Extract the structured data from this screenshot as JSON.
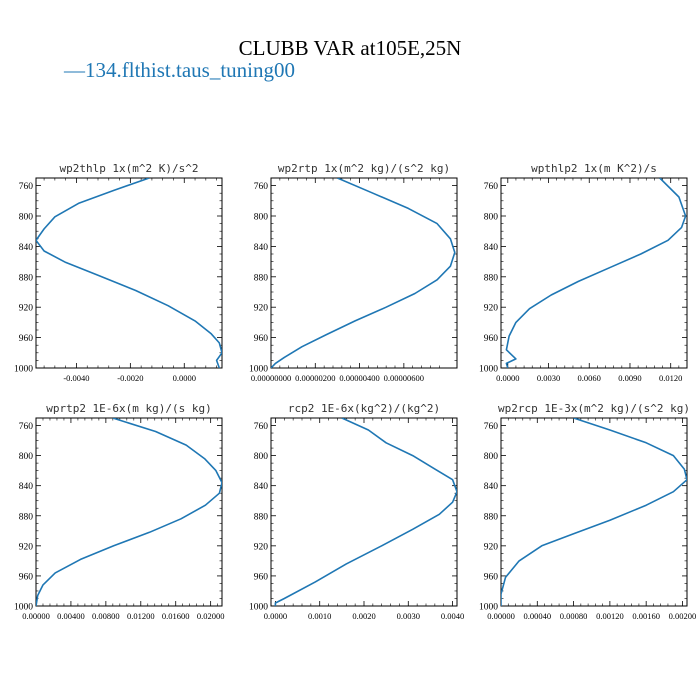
{
  "title": "CLUBB VAR at105E,25N",
  "legend": {
    "marker": "—",
    "label": "134.flthist.taus_tuning00",
    "color": "#1f77b4"
  },
  "chart_data": [
    {
      "type": "line",
      "title": "wp2thlp  1x(m^2 K)/s^2",
      "xlim": [
        -0.0055,
        0.0014
      ],
      "ylim": [
        1000,
        750
      ],
      "yticks": [
        760,
        800,
        840,
        880,
        920,
        960,
        1000
      ],
      "xticks": [
        -0.004,
        -0.002,
        0.0
      ],
      "xtick_labels": [
        "-0.0040",
        "-0.0020",
        "0.0000"
      ],
      "x": [
        -0.0013,
        -0.0026,
        -0.0039,
        -0.0048,
        -0.0052,
        -0.0055,
        -0.0052,
        -0.0044,
        -0.0032,
        -0.0018,
        -0.0006,
        0.0004,
        0.001,
        0.0013,
        0.0014,
        0.0012,
        0.0013
      ],
      "y": [
        750,
        766,
        783,
        801,
        817,
        832,
        846,
        861,
        878,
        898,
        918,
        938,
        955,
        967,
        980,
        990,
        1000
      ]
    },
    {
      "type": "line",
      "title": "wp2rtp  1x(m^2 kg)/(s^2 kg)",
      "xlim": [
        0.0,
        8.4e-06
      ],
      "ylim": [
        1000,
        750
      ],
      "yticks": [
        760,
        800,
        840,
        880,
        920,
        960,
        1000
      ],
      "xticks": [
        0.0,
        2e-06,
        4e-06,
        6e-06
      ],
      "xtick_labels": [
        "0.00000000",
        "0.00000200",
        "0.00000400",
        "0.00000600"
      ],
      "x": [
        3e-06,
        4.6e-06,
        6.2e-06,
        7.5e-06,
        8.1e-06,
        8.3e-06,
        8.1e-06,
        7.5e-06,
        6.5e-06,
        5.2e-06,
        3.8e-06,
        2.5e-06,
        1.4e-06,
        6e-07,
        2e-07,
        0.0
      ],
      "y": [
        750,
        770,
        790,
        810,
        830,
        848,
        866,
        884,
        902,
        920,
        938,
        956,
        972,
        986,
        994,
        1000
      ]
    },
    {
      "type": "line",
      "title": "wpthlp2  1x(m K^2)/s",
      "xlim": [
        -0.0005,
        0.0132
      ],
      "ylim": [
        1000,
        750
      ],
      "yticks": [
        760,
        800,
        840,
        880,
        920,
        960,
        1000
      ],
      "xticks": [
        0.0,
        0.003,
        0.006,
        0.009,
        0.012
      ],
      "xtick_labels": [
        "0.0000",
        "0.0030",
        "0.0060",
        "0.0090",
        "0.0120"
      ],
      "x": [
        0.0112,
        0.0126,
        0.0131,
        0.0128,
        0.0118,
        0.0098,
        0.0075,
        0.0052,
        0.0032,
        0.0016,
        0.0006,
        0.0001,
        -0.0001,
        0.0006,
        -0.0001,
        0.0
      ],
      "y": [
        750,
        775,
        800,
        815,
        832,
        850,
        868,
        886,
        904,
        922,
        940,
        958,
        976,
        988,
        994,
        1000
      ]
    },
    {
      "type": "line",
      "title": "wprtp2  1E-6x(m kg)/(s kg)",
      "xlim": [
        0.0,
        0.0213
      ],
      "ylim": [
        1000,
        750
      ],
      "yticks": [
        760,
        800,
        840,
        880,
        920,
        960,
        1000
      ],
      "xticks": [
        0.0,
        0.004,
        0.008,
        0.012,
        0.016,
        0.02
      ],
      "xtick_labels": [
        "0.00000",
        "0.00400",
        "0.00800",
        "0.01200",
        "0.01600",
        "0.02000"
      ],
      "x": [
        0.0088,
        0.0137,
        0.0172,
        0.0193,
        0.0206,
        0.0213,
        0.021,
        0.0194,
        0.0166,
        0.013,
        0.0089,
        0.0051,
        0.0022,
        0.0008,
        0.0002,
        0.0
      ],
      "y": [
        750,
        768,
        786,
        804,
        820,
        836,
        850,
        866,
        884,
        902,
        920,
        938,
        956,
        972,
        986,
        1000
      ]
    },
    {
      "type": "line",
      "title": "rcp2  1E-6x(kg^2)/(kg^2)",
      "xlim": [
        -0.0001,
        0.0041
      ],
      "ylim": [
        1000,
        750
      ],
      "yticks": [
        760,
        800,
        840,
        880,
        920,
        960,
        1000
      ],
      "xticks": [
        0.0,
        0.001,
        0.002,
        0.003,
        0.004
      ],
      "xtick_labels": [
        "0.0000",
        "0.0010",
        "0.0020",
        "0.0030",
        "0.0040"
      ],
      "x": [
        0.0015,
        0.0021,
        0.0025,
        0.0031,
        0.0036,
        0.004,
        0.0041,
        0.004,
        0.0037,
        0.0031,
        0.0024,
        0.0016,
        0.0009,
        0.0002,
        0.0,
        0.0
      ],
      "y": [
        750,
        766,
        783,
        800,
        818,
        832,
        848,
        862,
        878,
        898,
        920,
        944,
        968,
        990,
        996,
        1000
      ]
    },
    {
      "type": "line",
      "title": "wp2rcp  1E-3x(m^2 kg)/(s^2 kg)",
      "xlim": [
        0.0,
        0.00205
      ],
      "ylim": [
        1000,
        750
      ],
      "yticks": [
        760,
        800,
        840,
        880,
        920,
        960,
        1000
      ],
      "xticks": [
        0.0,
        0.0004,
        0.0008,
        0.0012,
        0.0016,
        0.002
      ],
      "xtick_labels": [
        "0.00000",
        "0.00040",
        "0.00080",
        "0.00120",
        "0.00160",
        "0.00200"
      ],
      "x": [
        0.0008,
        0.0012,
        0.0016,
        0.0019,
        0.00202,
        0.00205,
        0.0019,
        0.0016,
        0.0012,
        0.0008,
        0.00045,
        0.0002,
        5e-05,
        0.0,
        0.0
      ],
      "y": [
        750,
        766,
        783,
        800,
        818,
        832,
        848,
        866,
        886,
        904,
        920,
        940,
        962,
        984,
        1000
      ]
    }
  ]
}
